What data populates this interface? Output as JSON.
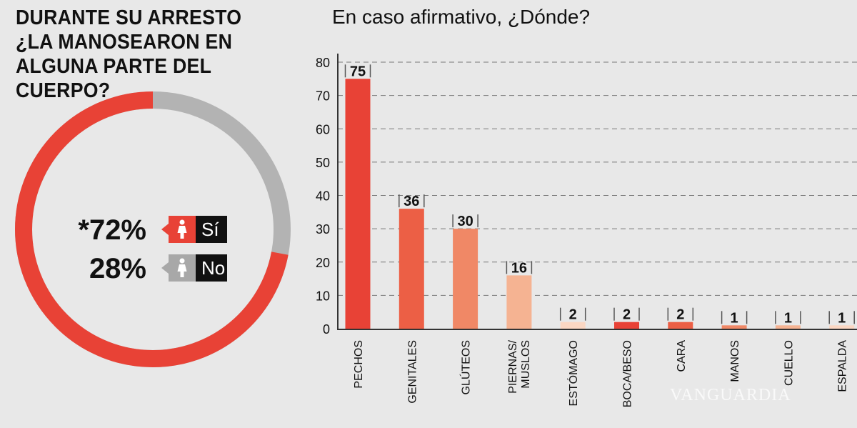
{
  "left_title": "DURANTE SU ARRESTO ¿LA MANOSEARON EN ALGUNA PARTE DEL CUERPO?",
  "right_title": "En caso afirmativo, ¿Dónde?",
  "donut": {
    "yes_pct_label": "*72%",
    "no_pct_label": "28%",
    "yes_label": "Sí",
    "no_label": "No",
    "yes_value": 72,
    "no_value": 28,
    "yes_color": "#e84236",
    "no_color": "#b3b3b3",
    "icon": "woman-icon"
  },
  "watermark": "VANGUARDIA",
  "chart_data": {
    "type": "bar",
    "title": "En caso afirmativo, ¿Dónde?",
    "categories": [
      "PECHOS",
      "GENITALES",
      "GLÚTEOS",
      "PIERNAS/ MUSLOS",
      "ESTÓMAGO",
      "BOCA/BESO",
      "CARA",
      "MANOS",
      "CUELLO",
      "ESPALDA"
    ],
    "values": [
      75,
      36,
      30,
      16,
      2,
      2,
      2,
      1,
      1,
      1
    ],
    "colors": [
      "#e84236",
      "#ec5f45",
      "#f08866",
      "#f5b392",
      "#fbd7c3",
      "#e84236",
      "#ec5f45",
      "#f08866",
      "#f5b392",
      "#fbd7c3"
    ],
    "ylim": [
      0,
      80
    ],
    "yticks": [
      0,
      10,
      20,
      30,
      40,
      50,
      60,
      70,
      80
    ],
    "grid": true
  }
}
